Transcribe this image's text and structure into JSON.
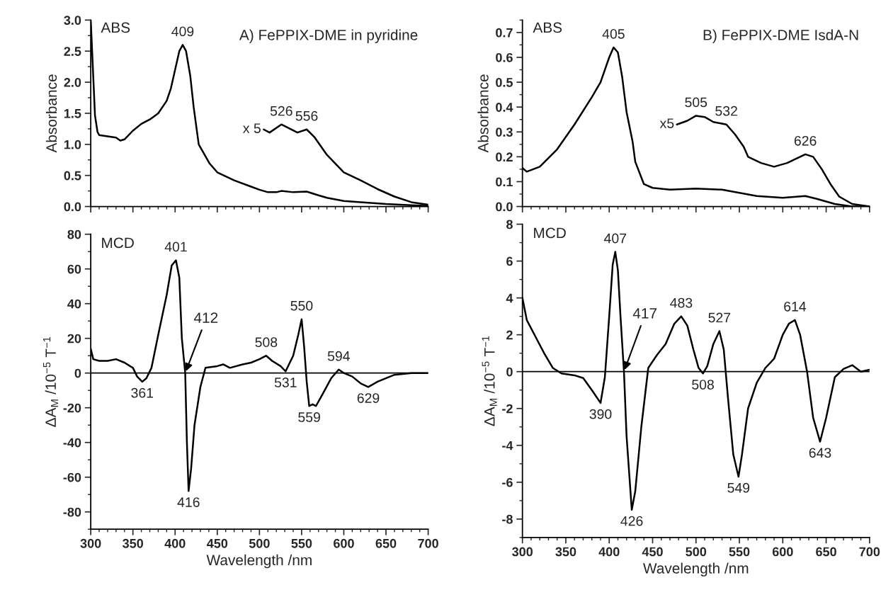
{
  "chart_data": [
    {
      "type": "line",
      "title": "A) FePPIX-DME in pyridine",
      "ylabel": "Absorbance",
      "xlim": [
        300,
        700
      ],
      "ylim": [
        0,
        3.0
      ],
      "xticks": [
        300,
        350,
        400,
        450,
        500,
        550,
        600,
        650,
        700
      ],
      "yticks": [
        {
          "value": 0,
          "label": "0.0"
        },
        0.5,
        {
          "value": 1,
          "label": "1.0"
        },
        1.5,
        {
          "value": 2,
          "label": "2.0"
        },
        2.5,
        {
          "value": 3,
          "label": "3.0"
        }
      ],
      "tick_labels": "y",
      "grid": false,
      "legend": false,
      "annotations": [
        "ABS",
        {
          "text": "409",
          "x": 409,
          "y": 2.6
        },
        {
          "text": "526",
          "x": 526,
          "y": 1.32
        },
        {
          "text": "556",
          "x": 556,
          "y": 1.24
        }
      ],
      "series": [
        {
          "color": "#000000",
          "x": [
            300,
            305,
            308,
            310,
            320,
            330,
            335,
            340,
            350,
            360,
            370,
            380,
            390,
            395,
            400,
            405,
            409,
            413,
            418,
            422,
            428,
            441,
            450,
            470,
            490,
            500,
            510,
            520,
            526,
            540,
            556,
            570,
            580,
            600,
            620,
            650,
            680,
            700
          ],
          "values": [
            3.0,
            1.47,
            1.2,
            1.15,
            1.13,
            1.11,
            1.06,
            1.08,
            1.22,
            1.33,
            1.4,
            1.5,
            1.7,
            1.9,
            2.2,
            2.5,
            2.6,
            2.5,
            2.1,
            1.6,
            1.0,
            0.69,
            0.55,
            0.42,
            0.32,
            0.27,
            0.23,
            0.23,
            0.25,
            0.23,
            0.24,
            0.18,
            0.14,
            0.09,
            0.07,
            0.04,
            0.02,
            0.01
          ]
        },
        {
          "name": "x 5",
          "color": "#000000",
          "x": [
            505,
            512,
            526,
            545,
            556,
            565,
            580,
            600,
            620,
            640,
            660,
            680,
            700
          ],
          "values": [
            1.24,
            1.19,
            1.32,
            1.19,
            1.24,
            1.12,
            0.83,
            0.55,
            0.42,
            0.28,
            0.16,
            0.07,
            0.03
          ]
        }
      ]
    },
    {
      "type": "line",
      "title": "B) FePPIX-DME IsdA-N",
      "ylabel": "Absorbance",
      "xlim": [
        300,
        700
      ],
      "ylim": [
        0,
        0.75
      ],
      "xticks": [
        300,
        350,
        400,
        450,
        500,
        550,
        600,
        650,
        700
      ],
      "yticks": [
        {
          "value": 0,
          "label": "0.0"
        },
        0.1,
        0.2,
        0.3,
        0.4,
        0.5,
        0.6,
        0.7
      ],
      "tick_labels": "y",
      "grid": false,
      "legend": false,
      "annotations": [
        "ABS",
        {
          "text": "405",
          "x": 405,
          "y": 0.64
        },
        {
          "text": "505",
          "x": 500,
          "y": 0.365
        },
        {
          "text": "532",
          "x": 535,
          "y": 0.33
        },
        {
          "text": "626",
          "x": 626,
          "y": 0.21
        }
      ],
      "series": [
        {
          "color": "#000000",
          "x": [
            300,
            305,
            320,
            340,
            360,
            380,
            390,
            400,
            405,
            410,
            415,
            420,
            427,
            430,
            440,
            450,
            470,
            500,
            530,
            550,
            570,
            600,
            626,
            640,
            660,
            680,
            700
          ],
          "values": [
            0.155,
            0.14,
            0.16,
            0.23,
            0.33,
            0.44,
            0.5,
            0.6,
            0.64,
            0.62,
            0.52,
            0.38,
            0.26,
            0.18,
            0.09,
            0.075,
            0.068,
            0.072,
            0.068,
            0.055,
            0.042,
            0.035,
            0.042,
            0.03,
            0.01,
            0.0,
            0.0
          ]
        },
        {
          "name": "x5",
          "color": "#000000",
          "x": [
            478,
            490,
            500,
            510,
            520,
            535,
            545,
            555,
            560,
            575,
            590,
            605,
            626,
            635,
            645,
            655,
            665,
            680,
            700
          ],
          "values": [
            0.33,
            0.345,
            0.365,
            0.36,
            0.34,
            0.33,
            0.29,
            0.24,
            0.2,
            0.175,
            0.16,
            0.175,
            0.21,
            0.2,
            0.15,
            0.09,
            0.04,
            0.01,
            0.0
          ]
        }
      ]
    },
    {
      "type": "line",
      "xlabel": "Wavelength /nm",
      "ylabel": "ΔA$_{M}$ /10$^{−5}$ T$^{−1}$",
      "xlim": [
        300,
        700
      ],
      "ylim": [
        -90,
        80
      ],
      "xticks": [
        300,
        350,
        400,
        450,
        500,
        550,
        600,
        650,
        700
      ],
      "yticks": [
        -80,
        -60,
        -40,
        -20,
        0,
        20,
        40,
        60,
        80
      ],
      "grid": false,
      "legend": false,
      "ref_lines": [
        {
          "axis": "y",
          "value": 0,
          "color": "#000000"
        }
      ],
      "annotations": [
        "MCD",
        {
          "text": "401",
          "x": 401,
          "y": 65
        },
        {
          "text": "412",
          "x": 412,
          "y": 0
        },
        {
          "text": "361",
          "x": 361,
          "y": -5
        },
        {
          "text": "416",
          "x": 416,
          "y": -68
        },
        {
          "text": "508",
          "x": 508,
          "y": 10
        },
        {
          "text": "531",
          "x": 531,
          "y": 1
        },
        {
          "text": "550",
          "x": 550,
          "y": 31
        },
        {
          "text": "559",
          "x": 559,
          "y": -19
        },
        {
          "text": "594",
          "x": 594,
          "y": 2
        },
        {
          "text": "629",
          "x": 629,
          "y": -8
        }
      ],
      "series": [
        {
          "color": "#000000",
          "x": [
            300,
            303,
            310,
            320,
            330,
            340,
            350,
            355,
            361,
            366,
            372,
            380,
            390,
            396,
            401,
            405,
            408,
            412,
            414,
            416,
            419,
            423,
            430,
            436,
            450,
            457,
            465,
            480,
            490,
            500,
            508,
            515,
            525,
            531,
            540,
            546,
            550,
            553,
            556,
            559,
            563,
            567,
            575,
            585,
            594,
            600,
            610,
            620,
            629,
            640,
            660,
            680,
            700
          ],
          "values": [
            14,
            8,
            7,
            7,
            8,
            6,
            3,
            -2,
            -5,
            -3,
            3,
            22,
            45,
            62,
            65,
            55,
            20,
            0,
            -40,
            -68,
            -55,
            -30,
            -8,
            3,
            4,
            5,
            3,
            5,
            6,
            8,
            10,
            7,
            4,
            1,
            10,
            22,
            31,
            15,
            -5,
            -19,
            -18,
            -19,
            -12,
            -3,
            2,
            0,
            -2,
            -6,
            -8,
            -5,
            -1,
            0,
            0
          ]
        }
      ]
    },
    {
      "type": "line",
      "xlabel": "Wavelength /nm",
      "ylabel": "ΔA$_{M}$ /10$^{−5}$ T$^{−1}$",
      "xlim": [
        300,
        700
      ],
      "ylim": [
        -9,
        8
      ],
      "xticks": [
        300,
        350,
        400,
        450,
        500,
        550,
        600,
        650,
        700
      ],
      "yticks": [
        -8,
        -6,
        -4,
        -2,
        0,
        2,
        4,
        6,
        8
      ],
      "grid": false,
      "legend": false,
      "ref_lines": [
        {
          "axis": "y",
          "value": 0,
          "color": "#000000"
        }
      ],
      "annotations": [
        "MCD",
        {
          "text": "407",
          "x": 407,
          "y": 6.5
        },
        {
          "text": "417",
          "x": 417,
          "y": 0
        },
        {
          "text": "390",
          "x": 390,
          "y": -1.7
        },
        {
          "text": "426",
          "x": 426,
          "y": -7.5
        },
        {
          "text": "483",
          "x": 483,
          "y": 3.0
        },
        {
          "text": "508",
          "x": 508,
          "y": -0.1
        },
        {
          "text": "527",
          "x": 527,
          "y": 2.2
        },
        {
          "text": "549",
          "x": 549,
          "y": -5.7
        },
        {
          "text": "614",
          "x": 614,
          "y": 2.8
        },
        {
          "text": "643",
          "x": 643,
          "y": -3.8
        }
      ],
      "series": [
        {
          "color": "#000000",
          "x": [
            300,
            305,
            315,
            325,
            335,
            345,
            360,
            370,
            380,
            390,
            395,
            400,
            404,
            407,
            410,
            413,
            417,
            420,
            426,
            430,
            437,
            445,
            455,
            465,
            475,
            483,
            490,
            497,
            503,
            508,
            513,
            520,
            527,
            532,
            537,
            543,
            549,
            553,
            560,
            570,
            580,
            590,
            600,
            607,
            614,
            620,
            628,
            635,
            643,
            650,
            660,
            670,
            680,
            690,
            700
          ],
          "values": [
            4,
            2.8,
            1.9,
            1.0,
            0.2,
            -0.1,
            -0.2,
            -0.35,
            -1.0,
            -1.7,
            -0.3,
            3,
            5.8,
            6.5,
            5.5,
            3,
            0,
            -3.5,
            -7.5,
            -6.5,
            -3,
            0.2,
            0.9,
            1.5,
            2.6,
            3.0,
            2.5,
            1.2,
            0.2,
            -0.1,
            0.3,
            1.5,
            2.2,
            1.2,
            -1.5,
            -4.5,
            -5.7,
            -4.5,
            -2.0,
            -0.6,
            0.2,
            0.7,
            2.0,
            2.6,
            2.8,
            2.0,
            0.0,
            -2.5,
            -3.8,
            -2.5,
            -0.3,
            0.15,
            0.35,
            0.0,
            0.1
          ]
        }
      ]
    }
  ]
}
